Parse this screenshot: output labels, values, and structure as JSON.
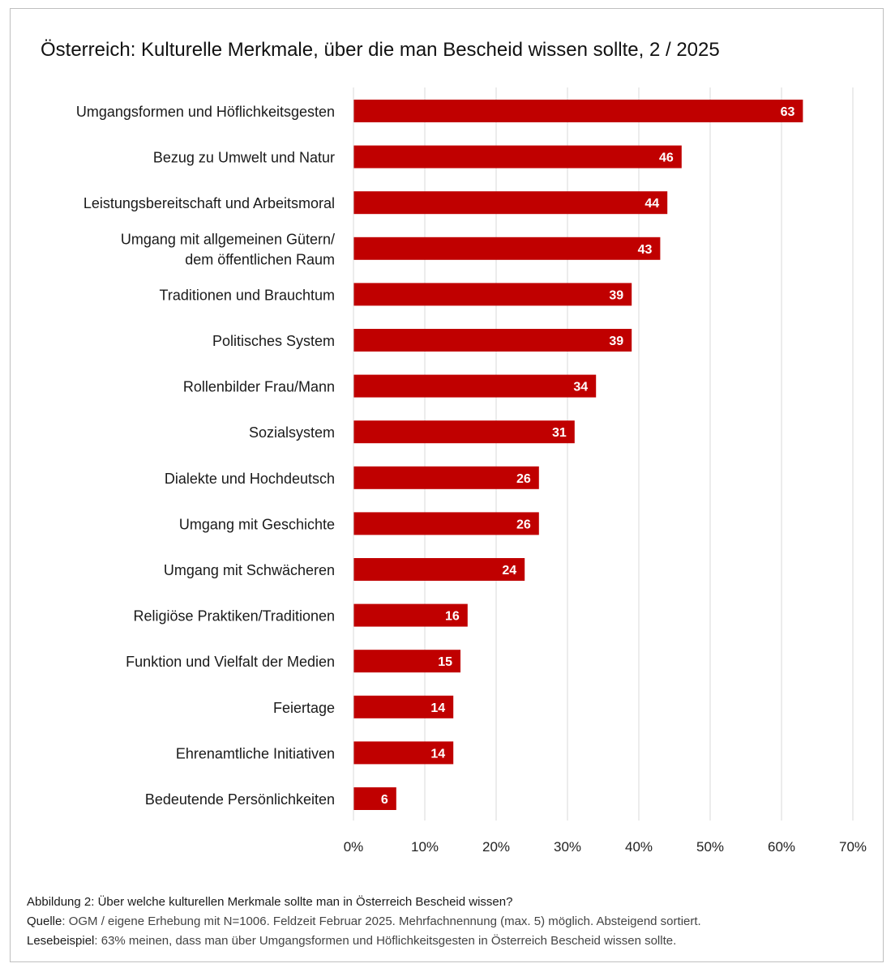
{
  "chart_data": {
    "type": "bar",
    "orientation": "horizontal",
    "title": "Österreich: Kulturelle Merkmale, über die man Bescheid wissen sollte, 2 / 2025",
    "categories": [
      "Umgangsformen und Höflichkeitsgesten",
      "Bezug zu Umwelt und Natur",
      "Leistungsbereitschaft und Arbeitsmoral",
      "Umgang mit allgemeinen Gütern/\ndem öffentlichen Raum",
      "Traditionen und Brauchtum",
      "Politisches System",
      "Rollenbilder Frau/Mann",
      "Sozialsystem",
      "Dialekte und Hochdeutsch",
      "Umgang mit Geschichte",
      "Umgang mit Schwächeren",
      "Religiöse Praktiken/Traditionen",
      "Funktion und Vielfalt der Medien",
      "Feiertage",
      "Ehrenamtliche Initiativen",
      "Bedeutende Persönlichkeiten"
    ],
    "values": [
      63,
      46,
      44,
      43,
      39,
      39,
      34,
      31,
      26,
      26,
      24,
      16,
      15,
      14,
      14,
      6
    ],
    "xlim": [
      0,
      70
    ],
    "xticks": [
      0,
      10,
      20,
      30,
      40,
      50,
      60,
      70
    ],
    "xtick_labels": [
      "0%",
      "10%",
      "20%",
      "30%",
      "40%",
      "50%",
      "60%",
      "70%"
    ],
    "grid": "vertical",
    "bar_color": "#c00000",
    "label_color": "#ffffff"
  },
  "caption": {
    "figure": "Abbildung 2: Über welche kulturellen Merkmale sollte man in Österreich Bescheid wissen?",
    "source_label": "Quelle",
    "source_text": ": OGM / eigene Erhebung mit N=1006. Feldzeit Februar 2025. Mehrfachnennung (max. 5) möglich. Absteigend sortiert.",
    "example_label": "Lesebeispiel",
    "example_text": ": 63% meinen, dass man über Umgangsformen und Höflichkeitsgesten in Österreich Bescheid wissen sollte."
  }
}
